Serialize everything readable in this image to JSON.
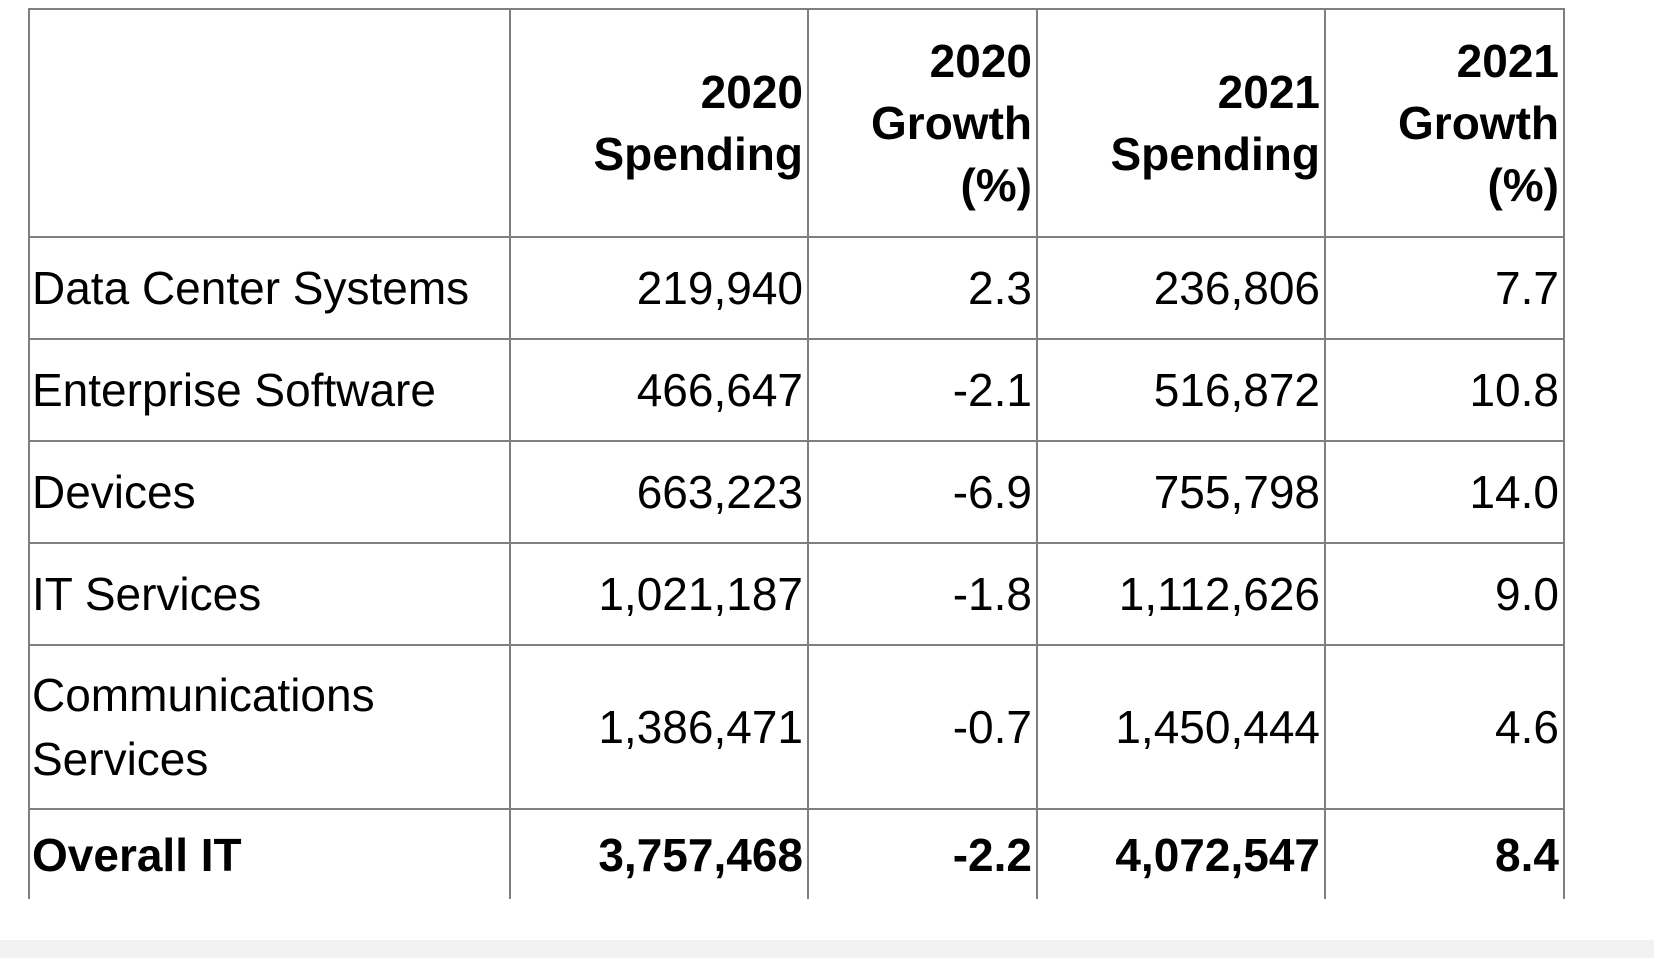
{
  "table": {
    "columns": [
      "",
      [
        "2020",
        "Spending"
      ],
      [
        "2020",
        "Growth",
        "(%)"
      ],
      [
        "2021",
        "Spending"
      ],
      [
        "2021",
        "Growth",
        "(%)"
      ]
    ],
    "rows": [
      {
        "label": "Data Center Systems",
        "spend_2020": "219,940",
        "growth_2020": "2.3",
        "spend_2021": "236,806",
        "growth_2021": "7.7"
      },
      {
        "label": "Enterprise Software",
        "spend_2020": "466,647",
        "growth_2020": "-2.1",
        "spend_2021": "516,872",
        "growth_2021": "10.8"
      },
      {
        "label": "Devices",
        "spend_2020": "663,223",
        "growth_2020": "-6.9",
        "spend_2021": "755,798",
        "growth_2021": "14.0"
      },
      {
        "label": "IT Services",
        "spend_2020": "1,021,187",
        "growth_2020": "-1.8",
        "spend_2021": "1,112,626",
        "growth_2021": "9.0"
      },
      {
        "label": "Communications Services",
        "label_lines": [
          "Communications",
          "Services"
        ],
        "spend_2020": "1,386,471",
        "growth_2020": "-0.7",
        "spend_2021": "1,450,444",
        "growth_2021": "4.6"
      }
    ],
    "total": {
      "label": "Overall IT",
      "spend_2020": "3,757,468",
      "growth_2020": "-2.2",
      "spend_2021": "4,072,547",
      "growth_2021": "8.4"
    }
  }
}
